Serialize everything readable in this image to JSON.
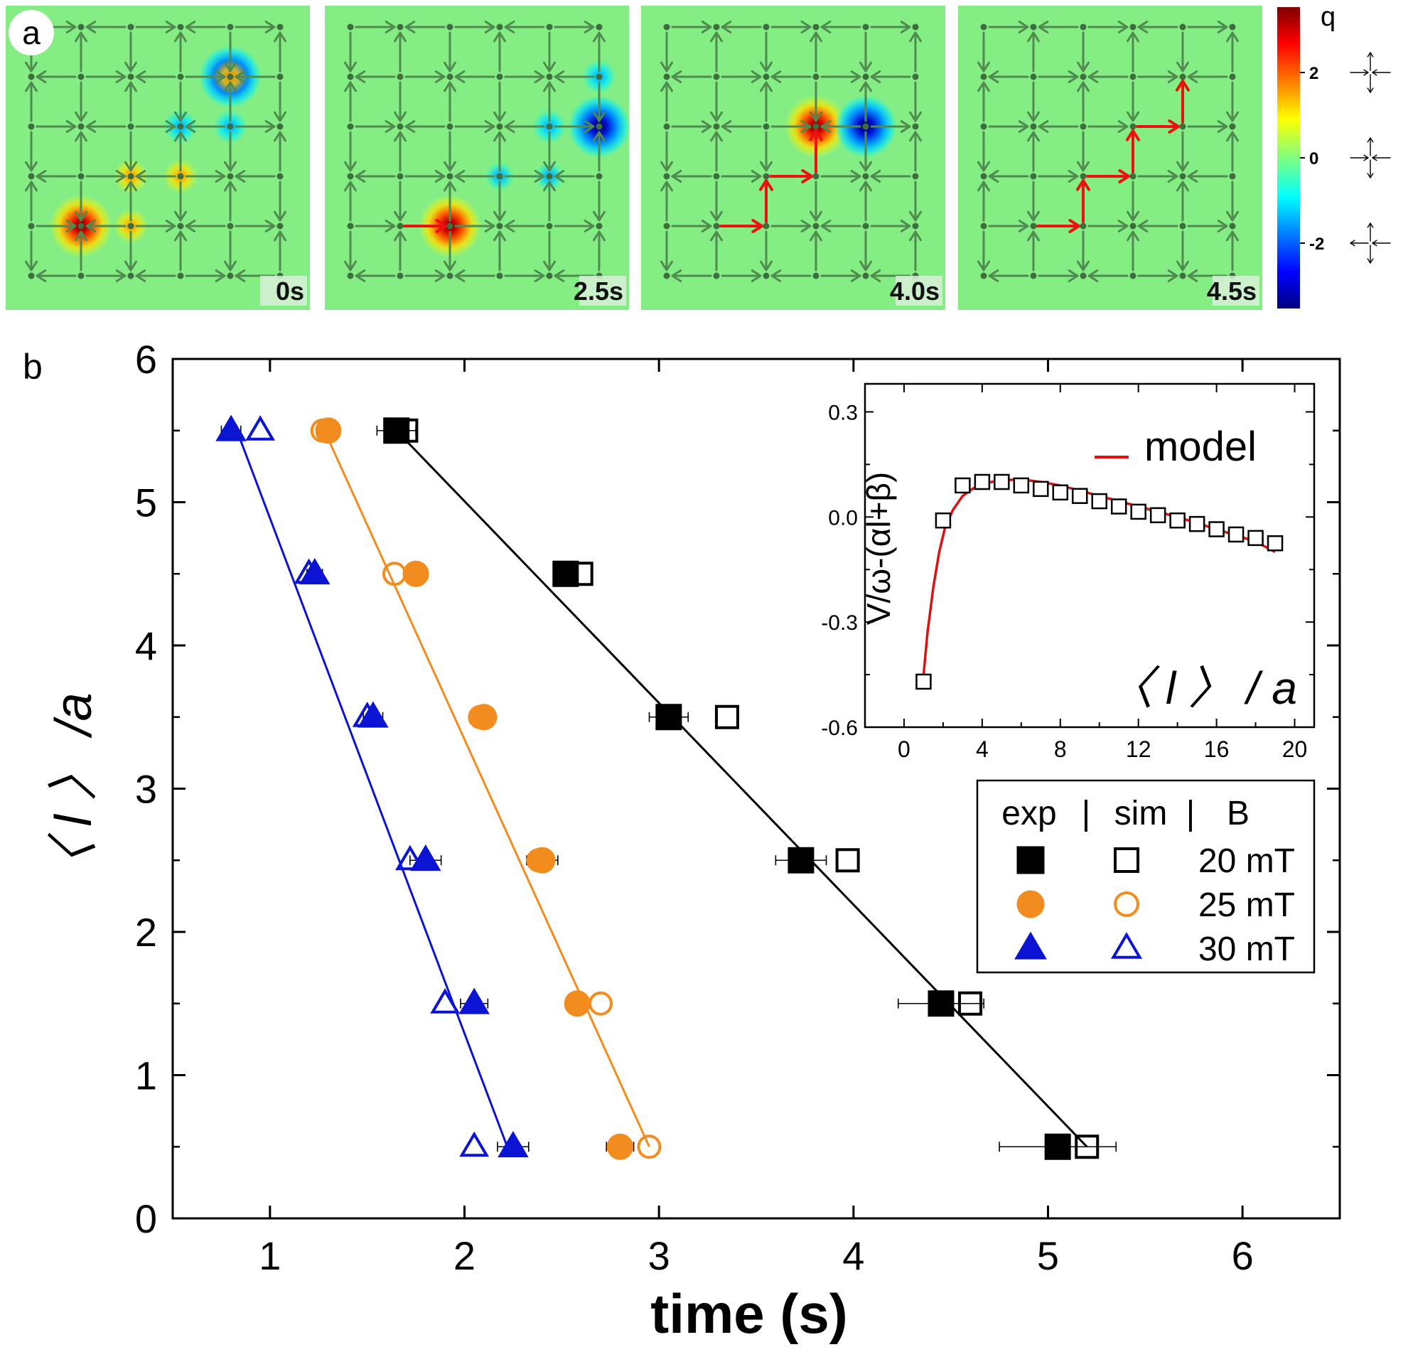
{
  "panel_a": {
    "label": "a",
    "frames": [
      {
        "time": "0s",
        "red_path": [],
        "defects": [
          {
            "node": [
              1,
              4
            ],
            "q": "pos",
            "s": "big"
          },
          {
            "node": [
              4,
              1
            ],
            "q": "neg",
            "s": "big"
          },
          {
            "node": [
              2,
              4
            ],
            "q": "pos",
            "s": "small"
          },
          {
            "node": [
              2,
              3
            ],
            "q": "pos",
            "s": "small"
          },
          {
            "node": [
              3,
              3
            ],
            "q": "pos",
            "s": "small"
          },
          {
            "node": [
              3,
              2
            ],
            "q": "neg",
            "s": "small"
          },
          {
            "node": [
              4,
              2
            ],
            "q": "neg",
            "s": "small"
          },
          {
            "node": [
              4,
              1
            ],
            "q": "pos",
            "s": "small"
          }
        ]
      },
      {
        "time": "2.5s",
        "red_path": [
          [
            1,
            4
          ],
          [
            2,
            4
          ]
        ],
        "defects": [
          {
            "node": [
              2,
              4
            ],
            "q": "pos",
            "s": "big"
          },
          {
            "node": [
              5,
              2
            ],
            "q": "neg",
            "s": "big"
          },
          {
            "node": [
              3,
              3
            ],
            "q": "pos",
            "s": "small"
          },
          {
            "node": [
              4,
              3
            ],
            "q": "pos",
            "s": "small"
          },
          {
            "node": [
              3,
              3
            ],
            "q": "neg",
            "s": "small"
          },
          {
            "node": [
              4,
              3
            ],
            "q": "neg",
            "s": "small"
          },
          {
            "node": [
              4,
              2
            ],
            "q": "neg",
            "s": "small"
          },
          {
            "node": [
              5,
              1
            ],
            "q": "neg",
            "s": "small"
          }
        ]
      },
      {
        "time": "4.0s",
        "red_path": [
          [
            1,
            4
          ],
          [
            2,
            4
          ],
          [
            2,
            3
          ],
          [
            3,
            3
          ],
          [
            3,
            2
          ]
        ],
        "defects": [
          {
            "node": [
              3,
              2
            ],
            "q": "pos",
            "s": "big"
          },
          {
            "node": [
              4,
              2
            ],
            "q": "neg",
            "s": "big"
          }
        ]
      },
      {
        "time": "4.5s",
        "red_path": [
          [
            1,
            4
          ],
          [
            2,
            4
          ],
          [
            2,
            3
          ],
          [
            3,
            3
          ],
          [
            3,
            2
          ],
          [
            4,
            2
          ],
          [
            4,
            1
          ]
        ],
        "defects": []
      }
    ],
    "colorbar": {
      "title": "q",
      "ticks": [
        "2",
        "0",
        "-2"
      ],
      "colors": [
        "#7f0000",
        "#ff0000",
        "#ff8000",
        "#ffff00",
        "#80ff80",
        "#00ffff",
        "#0080ff",
        "#0000ff",
        "#00007f"
      ]
    },
    "colors": {
      "background": "#84ee84",
      "arrow": "#4f8a4f",
      "node": "#3e6e3e",
      "path": "#ee1111"
    }
  },
  "panel_b": {
    "label": "b",
    "model_label": "model",
    "legend_header": [
      "exp",
      "|",
      "sim",
      "|",
      "B"
    ]
  },
  "chart_data": [
    {
      "type": "scatter",
      "title": "",
      "xlabel": "time (s)",
      "ylabel": "〈 l 〉 /a",
      "xlim": [
        0.5,
        6.5
      ],
      "ylim": [
        0,
        6
      ],
      "xticks": [
        1,
        2,
        3,
        4,
        5,
        6
      ],
      "yticks": [
        0,
        1,
        2,
        3,
        4,
        5,
        6
      ],
      "series": [
        {
          "name": "20 mT",
          "color": "#000000",
          "marker": "square",
          "exp": {
            "x": [
              1.65,
              2.52,
              3.05,
              3.73,
              4.45,
              5.05
            ],
            "xerr": [
              0.1,
              0.0,
              0.1,
              0.13,
              0.22,
              0.3
            ],
            "y": [
              5.5,
              4.5,
              3.5,
              2.5,
              1.5,
              0.5
            ]
          },
          "sim": {
            "x": [
              1.7,
              2.6,
              3.35,
              3.97,
              4.6,
              5.2
            ],
            "y": [
              5.5,
              4.5,
              3.5,
              2.5,
              1.5,
              0.5
            ]
          },
          "fit": {
            "x": [
              1.65,
              5.2
            ],
            "y": [
              5.5,
              0.5
            ]
          }
        },
        {
          "name": "25 mT",
          "color": "#f28c1e",
          "marker": "circle",
          "exp": {
            "x": [
              1.3,
              1.75,
              2.1,
              2.4,
              2.58,
              2.8
            ],
            "xerr": [
              0.05,
              0.06,
              0.06,
              0.08,
              0.06,
              0.07
            ],
            "y": [
              5.5,
              4.5,
              3.5,
              2.5,
              1.5,
              0.5
            ]
          },
          "sim": {
            "x": [
              1.27,
              1.64,
              2.08,
              2.38,
              2.7,
              2.95
            ],
            "y": [
              5.5,
              4.5,
              3.5,
              2.5,
              1.5,
              0.5
            ]
          },
          "fit": {
            "x": [
              1.28,
              2.95
            ],
            "y": [
              5.5,
              0.5
            ]
          }
        },
        {
          "name": "30 mT",
          "color": "#0a14d2",
          "marker": "triangle",
          "exp": {
            "x": [
              0.8,
              1.23,
              1.53,
              1.8,
              2.05,
              2.25
            ],
            "xerr": [
              0.05,
              0.04,
              0.05,
              0.08,
              0.07,
              0.08
            ],
            "y": [
              5.5,
              4.5,
              3.5,
              2.5,
              1.5,
              0.5
            ]
          },
          "sim": {
            "x": [
              0.95,
              1.2,
              1.5,
              1.72,
              1.9,
              2.05
            ],
            "y": [
              5.5,
              4.5,
              3.5,
              2.5,
              1.5,
              0.5
            ]
          },
          "fit": {
            "x": [
              0.83,
              2.22
            ],
            "y": [
              5.5,
              0.5
            ]
          }
        }
      ],
      "legend": {
        "placement": "bottom-right"
      }
    },
    {
      "type": "scatter",
      "title": "",
      "xlabel": "〈 l 〉 / a",
      "ylabel": "V/ω-(αl+β)",
      "xlim": [
        -2,
        21
      ],
      "ylim": [
        -0.6,
        0.38
      ],
      "xticks": [
        0,
        4,
        8,
        12,
        16,
        20
      ],
      "yticks": [
        0.3,
        0.0,
        -0.3,
        -0.6
      ],
      "ytick_labels": [
        "0.3",
        "0.0",
        "-0.3",
        "-0.6"
      ],
      "series": [
        {
          "name": "sim",
          "marker": "square-open",
          "color": "#000000",
          "x": [
            1,
            2,
            3,
            4,
            5,
            6,
            7,
            8,
            9,
            10,
            11,
            12,
            13,
            14,
            15,
            16,
            17,
            18,
            19
          ],
          "y": [
            -0.47,
            -0.01,
            0.09,
            0.1,
            0.1,
            0.09,
            0.08,
            0.07,
            0.06,
            0.045,
            0.03,
            0.015,
            0.005,
            -0.01,
            -0.02,
            -0.035,
            -0.05,
            -0.06,
            -0.075
          ]
        },
        {
          "name": "model",
          "type": "line",
          "color": "#e01010",
          "x": [
            1.0,
            1.2,
            1.5,
            1.8,
            2.1,
            2.5,
            3.0,
            3.5,
            4.0,
            5.0,
            6.0,
            7.0,
            8.0,
            10.0,
            12.0,
            14.0,
            16.0,
            18.0,
            19.0
          ],
          "y": [
            -0.45,
            -0.33,
            -0.2,
            -0.1,
            -0.03,
            0.02,
            0.06,
            0.08,
            0.095,
            0.105,
            0.107,
            0.1,
            0.09,
            0.06,
            0.03,
            0.0,
            -0.035,
            -0.07,
            -0.1
          ]
        }
      ]
    }
  ]
}
